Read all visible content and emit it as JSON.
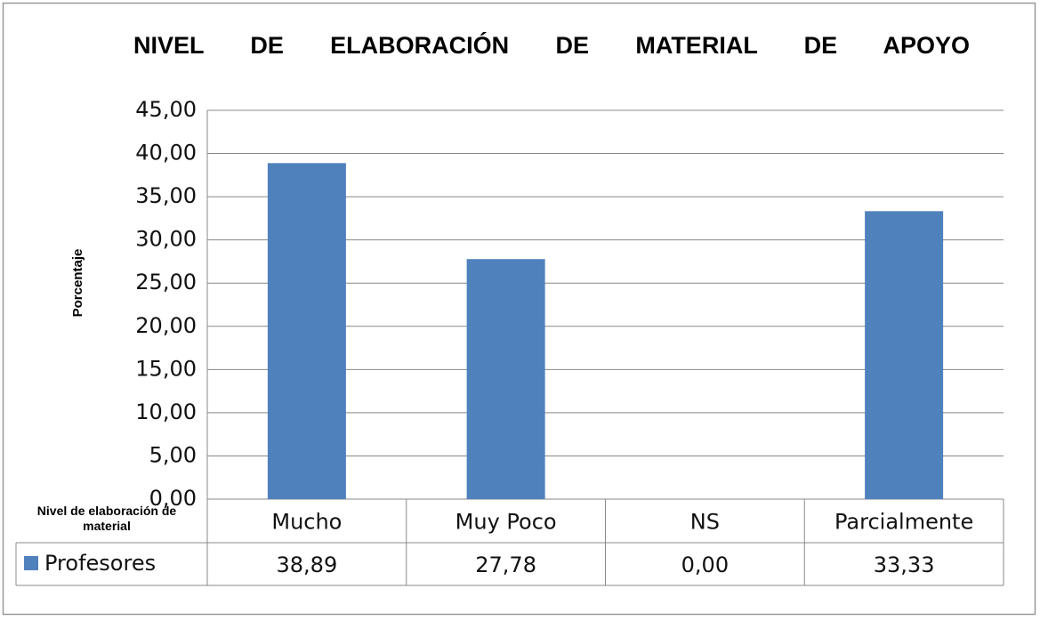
{
  "chart_data": {
    "type": "bar",
    "title": "NIVEL DE ELABORACIÓN DE MATERIAL DE APOYO",
    "y_label": "Porcentaje",
    "x_label": "Nivel de elaboración de material",
    "categories": [
      "Mucho",
      "Muy Poco",
      "NS",
      "Parcialmente"
    ],
    "series": [
      {
        "name": "Profesores",
        "color": "#4f81bd",
        "values": [
          38.89,
          27.78,
          0,
          33.33
        ],
        "value_labels": [
          "38,89",
          "27,78",
          "0,00",
          "33,33"
        ]
      }
    ],
    "ylim": [
      0,
      45
    ],
    "yticks": [
      {
        "value": 0,
        "label": "0,00"
      },
      {
        "value": 5,
        "label": "5,00"
      },
      {
        "value": 10,
        "label": "10,00"
      },
      {
        "value": 15,
        "label": "15,00"
      },
      {
        "value": 20,
        "label": "20,00"
      },
      {
        "value": 25,
        "label": "25,00"
      },
      {
        "value": 30,
        "label": "30,00"
      },
      {
        "value": 35,
        "label": "35,00"
      },
      {
        "value": 40,
        "label": "40,00"
      },
      {
        "value": 45,
        "label": "45,00"
      }
    ],
    "grid": true,
    "legend": "table"
  }
}
